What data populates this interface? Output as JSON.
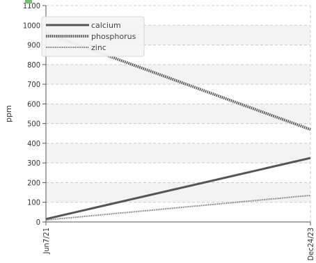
{
  "chart_data": {
    "type": "line",
    "title": "",
    "xlabel": "",
    "ylabel": "ppm",
    "x": [
      "Jun7/21",
      "Dec24/23"
    ],
    "ylim": [
      0,
      1100
    ],
    "yticks": [
      0,
      100,
      200,
      300,
      400,
      500,
      600,
      700,
      800,
      900,
      1000,
      1100
    ],
    "grid": true,
    "legend_position": "top-left",
    "series": [
      {
        "name": "calcium",
        "values": [
          15,
          325
        ],
        "color": "#555555",
        "style": "solid"
      },
      {
        "name": "phosphorus",
        "values": [
          960,
          470
        ],
        "color": "#555555",
        "style": "dotted-thick"
      },
      {
        "name": "zinc",
        "values": [
          10,
          135
        ],
        "color": "#777777",
        "style": "dotted-thin"
      }
    ],
    "colors": {
      "band": "#f3f3f3",
      "grid": "#cccccc",
      "axis": "#555555",
      "marker": "#6cc36c"
    }
  }
}
